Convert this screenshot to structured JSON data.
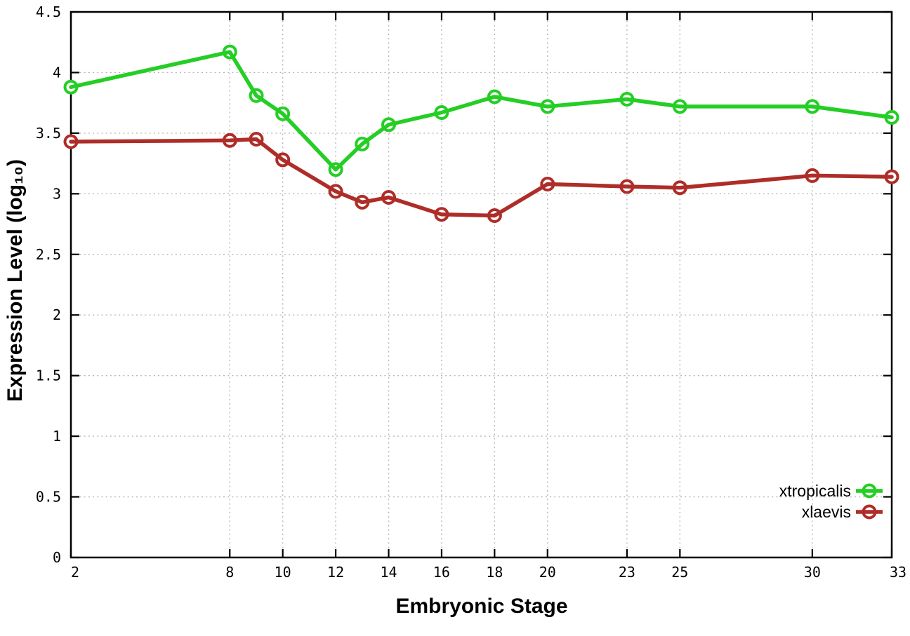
{
  "chart_data": {
    "type": "line",
    "xlabel": "Embryonic Stage",
    "ylabel": "Expression Level (log₁₀)",
    "x": [
      2,
      8,
      9,
      10,
      12,
      13,
      14,
      16,
      18,
      20,
      23,
      25,
      30,
      33
    ],
    "series": [
      {
        "name": "xtropicalis",
        "color": "#24CE24",
        "marker": "open-circle",
        "values": [
          3.88,
          4.17,
          3.81,
          3.66,
          3.2,
          3.41,
          3.57,
          3.67,
          3.8,
          3.72,
          3.78,
          3.72,
          3.72,
          3.63
        ]
      },
      {
        "name": "xlaevis",
        "color": "#AF2D28",
        "marker": "open-circle",
        "values": [
          3.43,
          3.44,
          3.45,
          3.28,
          3.02,
          2.93,
          2.97,
          2.83,
          2.82,
          3.08,
          3.06,
          3.05,
          3.15,
          3.14
        ]
      }
    ],
    "xlim": [
      2,
      33
    ],
    "ylim": [
      0,
      4.5
    ],
    "x_ticks": [
      {
        "value": 2,
        "label": "2"
      },
      {
        "value": 8,
        "label": "8"
      },
      {
        "value": 10,
        "label": "10"
      },
      {
        "value": 12,
        "label": "12"
      },
      {
        "value": 14,
        "label": "14"
      },
      {
        "value": 16,
        "label": "16"
      },
      {
        "value": 18,
        "label": "18"
      },
      {
        "value": 20,
        "label": "20"
      },
      {
        "value": 23,
        "label": "23"
      },
      {
        "value": 25,
        "label": "25"
      },
      {
        "value": 30,
        "label": "30"
      },
      {
        "value": 33,
        "label": "33"
      }
    ],
    "y_ticks": [
      {
        "value": 0,
        "label": "0"
      },
      {
        "value": 0.5,
        "label": "0.5"
      },
      {
        "value": 1,
        "label": "1"
      },
      {
        "value": 1.5,
        "label": "1.5"
      },
      {
        "value": 2,
        "label": "2"
      },
      {
        "value": 2.5,
        "label": "2.5"
      },
      {
        "value": 3,
        "label": "3"
      },
      {
        "value": 3.5,
        "label": "3.5"
      },
      {
        "value": 4,
        "label": "4"
      },
      {
        "value": 4.5,
        "label": "4.5"
      }
    ],
    "grid": "dotted",
    "legend_position": "inside-bottom-right",
    "colors": {
      "grid": "#b6b6b6",
      "axis": "#000000",
      "background": "#ffffff"
    }
  }
}
